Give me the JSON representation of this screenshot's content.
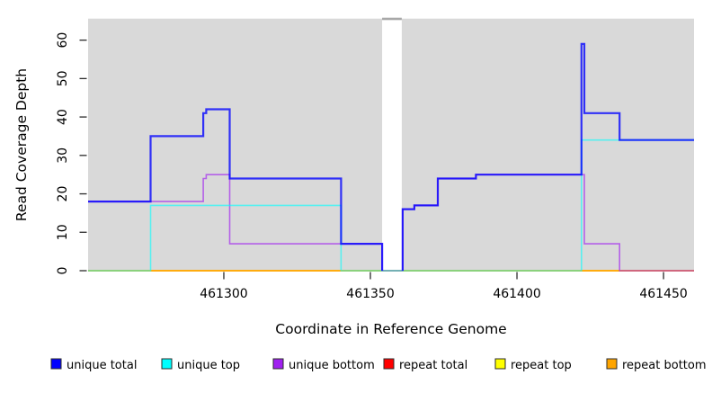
{
  "chart_data": {
    "type": "line",
    "subtype": "step-coverage-plot",
    "title": "",
    "xlabel": "Coordinate in Reference Genome",
    "ylabel": "Read Coverage Depth",
    "xlim": [
      461253.7,
      461460.4
    ],
    "ylim": [
      0,
      65.6
    ],
    "x_ticks": [
      461300,
      461350,
      461400,
      461450
    ],
    "y_ticks": [
      0,
      10,
      20,
      30,
      40,
      50,
      60
    ],
    "grid": "off",
    "panel_background": "#D9D9D9",
    "masked_region": {
      "x_start": 461354,
      "x_end": 461360.7,
      "fill": "#FFFFFF"
    },
    "legend_position": "bottom",
    "legend": [
      {
        "label": "unique total",
        "color": "#0000FF"
      },
      {
        "label": "unique top",
        "color": "#00FFFF"
      },
      {
        "label": "unique bottom",
        "color": "#A020F0"
      },
      {
        "label": "repeat total",
        "color": "#FF0000"
      },
      {
        "label": "repeat top",
        "color": "#FFFF00"
      },
      {
        "label": "repeat bottom",
        "color": "#FFA500"
      }
    ],
    "series": [
      {
        "name": "repeat total",
        "color": "#FF0000",
        "opacity": 1,
        "width": 1.6,
        "steps": [
          [
            461253.7,
            0
          ]
        ]
      },
      {
        "name": "repeat top",
        "color": "#FFFF00",
        "opacity": 1,
        "width": 1.6,
        "steps": [
          [
            461253.7,
            0
          ]
        ]
      },
      {
        "name": "repeat bottom",
        "color": "#FFA500",
        "opacity": 1,
        "width": 1.6,
        "steps": [
          [
            461253.7,
            0
          ]
        ]
      },
      {
        "name": "unique bottom",
        "color": "#A020F0",
        "opacity": 0.65,
        "width": 1.6,
        "steps": [
          [
            461253.7,
            18
          ],
          [
            461293,
            24
          ],
          [
            461294,
            25
          ],
          [
            461302,
            7
          ],
          [
            461354,
            0
          ],
          [
            461361,
            16
          ],
          [
            461365,
            17
          ],
          [
            461373,
            24
          ],
          [
            461386,
            25
          ],
          [
            461423,
            7
          ],
          [
            461435,
            0
          ]
        ]
      },
      {
        "name": "unique top",
        "color": "#00FFFF",
        "opacity": 0.6,
        "width": 1.6,
        "steps": [
          [
            461253.7,
            0
          ],
          [
            461275,
            17
          ],
          [
            461340,
            0
          ],
          [
            461422,
            34
          ]
        ]
      },
      {
        "name": "unique total",
        "color": "#0000FF",
        "opacity": 0.78,
        "width": 2.2,
        "mask_break": true,
        "steps": [
          [
            461253.7,
            18
          ],
          [
            461275,
            35
          ],
          [
            461293,
            41
          ],
          [
            461294,
            42
          ],
          [
            461302,
            24
          ],
          [
            461340,
            7
          ],
          [
            461354,
            0
          ],
          [
            461361,
            16
          ],
          [
            461365,
            17
          ],
          [
            461373,
            24
          ],
          [
            461386,
            25
          ],
          [
            461422,
            59
          ],
          [
            461423,
            41
          ],
          [
            461435,
            34
          ]
        ]
      }
    ]
  }
}
